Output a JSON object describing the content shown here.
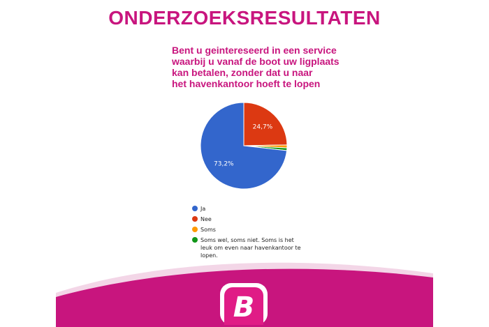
{
  "page": {
    "title": "ONDERZOEKSRESULTATEN"
  },
  "colors": {
    "brand": "#c8157e",
    "brand_light": "#f3d6e7",
    "logo_bg": "#e01c86"
  },
  "chart_data": {
    "type": "pie",
    "title": "Bent u geintereseerd in een service waarbij u vanaf de boot uw ligplaats kan betalen, zonder dat u naar het havenkantoor hoeft te lopen",
    "title_lines": [
      "Bent u geintereseerd in een service",
      "waarbij u vanaf de boot uw ligplaats",
      "kan betalen, zonder dat u naar",
      "het havenkantoor hoeft te lopen"
    ],
    "slices": [
      {
        "label": "Ja",
        "value": 73.2,
        "value_label": "73,2%",
        "color": "#3366cc"
      },
      {
        "label": "Nee",
        "value": 24.7,
        "value_label": "24,7%",
        "color": "#dc3912"
      },
      {
        "label": "Soms",
        "value": 1.1,
        "value_label": "",
        "color": "#ff9900"
      },
      {
        "label": "Soms wel, soms niet. Soms is het leuk om even naar havenkantoor te lopen.",
        "value": 1.0,
        "value_label": "",
        "color": "#109618"
      }
    ],
    "legend_position": "bottom",
    "legend": [
      {
        "lines": [
          "Ja"
        ]
      },
      {
        "lines": [
          "Nee"
        ]
      },
      {
        "lines": [
          "Soms"
        ]
      },
      {
        "lines": [
          "Soms wel, soms niet. Soms is het",
          "leuk om even naar havenkantoor te",
          "lopen."
        ]
      }
    ]
  },
  "logo": {
    "letter": "B"
  }
}
